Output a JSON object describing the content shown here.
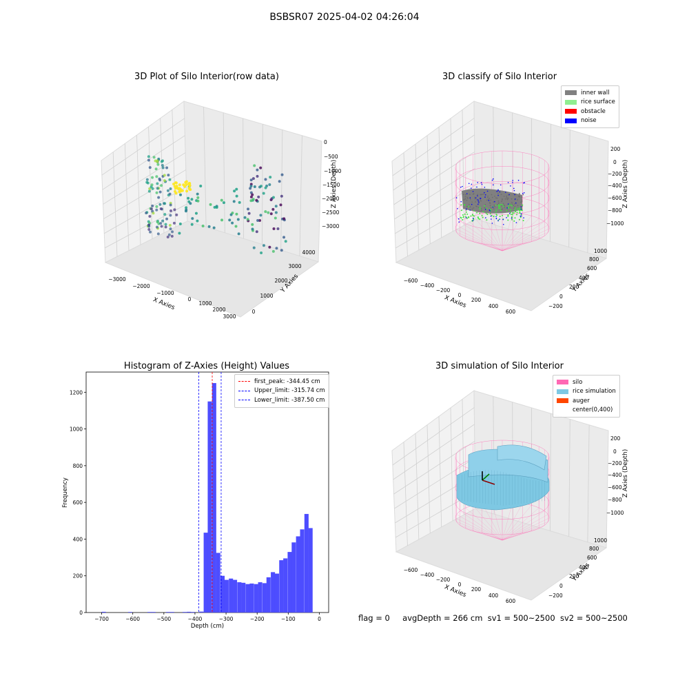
{
  "page_title": "BSBSR07 2025-04-02 04:26:04",
  "status_line": {
    "flag": "flag = 0",
    "avg_depth": "avgDepth = 266 cm",
    "sv1": "sv1 = 500~2500",
    "sv2": "sv2 = 500~2500"
  },
  "chart_data": [
    {
      "type": "scatter",
      "title": "3D Plot of Silo Interior(row data)",
      "xlabel": "X Axies",
      "ylabel": "Y Axies",
      "zlabel": "Z Axies (Depth)",
      "x_ticks": [
        "−3000",
        "−2000",
        "−1000",
        "0",
        "1000",
        "2000",
        "3000"
      ],
      "y_ticks": [
        "0",
        "1000",
        "2000",
        "3000",
        "4000"
      ],
      "z_ticks": [
        "0",
        "−500",
        "−1000",
        "−1500",
        "−2000",
        "−2500",
        "−3000"
      ],
      "colormap": "viridis"
    },
    {
      "type": "scatter",
      "title": "3D classify of Silo Interior",
      "xlabel": "X Axies",
      "ylabel": "Y Axies",
      "zlabel": "Z Axies (Depth)",
      "x_ticks": [
        "−600",
        "−400",
        "−200",
        "0",
        "200",
        "400",
        "600"
      ],
      "y_ticks": [
        "−200",
        "0",
        "200",
        "400",
        "600",
        "800",
        "1000"
      ],
      "z_ticks": [
        "200",
        "0",
        "−200",
        "−400",
        "−600",
        "−800",
        "−1000"
      ],
      "legend": [
        {
          "label": "inner wall",
          "color": "#808080"
        },
        {
          "label": "rice surface",
          "color": "#90ee90"
        },
        {
          "label": "obstacle",
          "color": "#ff0000"
        },
        {
          "label": "noise",
          "color": "#0000ff"
        }
      ],
      "legend_position": "top-right"
    },
    {
      "type": "bar",
      "title": "Histogram of Z-Axies (Height) Values",
      "xlabel": "Depth (cm)",
      "ylabel": "Frequency",
      "xlim": [
        -750,
        30
      ],
      "ylim": [
        0,
        1310
      ],
      "x_ticks": [
        -700,
        -600,
        -500,
        -400,
        -300,
        -200,
        -100,
        0
      ],
      "x_tick_labels": [
        "−700",
        "−600",
        "−500",
        "−400",
        "−300",
        "−200",
        "−100",
        "0"
      ],
      "y_ticks": [
        0,
        200,
        400,
        600,
        800,
        1000,
        1200
      ],
      "bin_width": 13.5,
      "bins": [
        {
          "x": -700,
          "count": 4
        },
        {
          "x": -615,
          "count": 3
        },
        {
          "x": -553,
          "count": 3
        },
        {
          "x": -540,
          "count": 3
        },
        {
          "x": -493,
          "count": 3
        },
        {
          "x": -480,
          "count": 3
        },
        {
          "x": -440,
          "count": 3
        },
        {
          "x": -426,
          "count": 4
        },
        {
          "x": -413,
          "count": 3
        },
        {
          "x": -386,
          "count": 5
        },
        {
          "x": -372,
          "count": 435
        },
        {
          "x": -359,
          "count": 1150
        },
        {
          "x": -345,
          "count": 1250
        },
        {
          "x": -332,
          "count": 325
        },
        {
          "x": -318,
          "count": 200
        },
        {
          "x": -305,
          "count": 178
        },
        {
          "x": -291,
          "count": 185
        },
        {
          "x": -278,
          "count": 178
        },
        {
          "x": -264,
          "count": 165
        },
        {
          "x": -251,
          "count": 162
        },
        {
          "x": -237,
          "count": 155
        },
        {
          "x": -224,
          "count": 158
        },
        {
          "x": -210,
          "count": 155
        },
        {
          "x": -197,
          "count": 165
        },
        {
          "x": -183,
          "count": 160
        },
        {
          "x": -170,
          "count": 192
        },
        {
          "x": -156,
          "count": 220
        },
        {
          "x": -143,
          "count": 212
        },
        {
          "x": -129,
          "count": 285
        },
        {
          "x": -116,
          "count": 295
        },
        {
          "x": -102,
          "count": 330
        },
        {
          "x": -89,
          "count": 382
        },
        {
          "x": -75,
          "count": 415
        },
        {
          "x": -62,
          "count": 453
        },
        {
          "x": -48,
          "count": 537
        },
        {
          "x": -35,
          "count": 460
        }
      ],
      "bar_color": "#4d4dff",
      "lines": [
        {
          "label": "first_peak: -344.45 cm",
          "x": -344.45,
          "color": "#ff0000"
        },
        {
          "label": "Upper_limit: -315.74 cm",
          "x": -315.74,
          "color": "#0000ff"
        },
        {
          "label": "Lower_limit: -387.50 cm",
          "x": -387.5,
          "color": "#0000ff"
        }
      ],
      "legend_position": "top-right"
    },
    {
      "type": "scatter",
      "title": "3D simulation of Silo Interior",
      "xlabel": "X Axies",
      "ylabel": "Y Axies",
      "zlabel": "Z Axies (Depth)",
      "x_ticks": [
        "−600",
        "−400",
        "−200",
        "0",
        "200",
        "400",
        "600"
      ],
      "y_ticks": [
        "−200",
        "0",
        "200",
        "400",
        "600",
        "800",
        "1000"
      ],
      "z_ticks": [
        "200",
        "0",
        "−200",
        "−400",
        "−600",
        "−800",
        "−1000"
      ],
      "legend": [
        {
          "label": "silo",
          "color": "#ff69b4"
        },
        {
          "label": "rice simulation",
          "color": "#7ec8e3"
        },
        {
          "label": "auger",
          "color": "#ff4500"
        },
        {
          "label": "center(0,400)",
          "color": ""
        }
      ],
      "legend_position": "top-right"
    }
  ]
}
